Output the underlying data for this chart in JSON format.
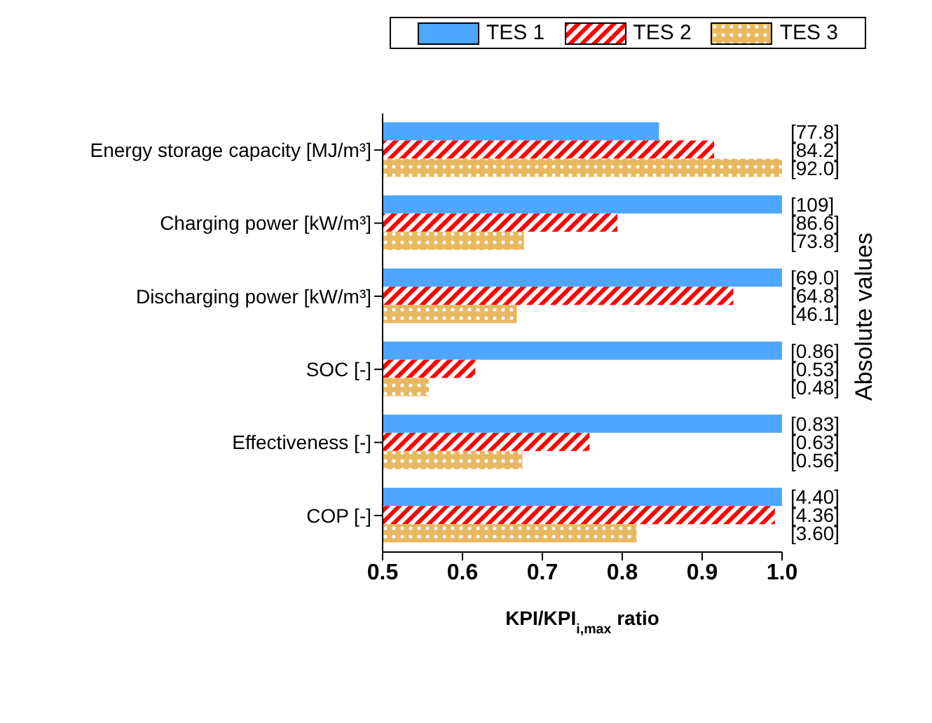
{
  "chart_data": {
    "type": "bar",
    "orientation": "horizontal",
    "categories": [
      "Energy storage capacity  [MJ/m³]",
      "Charging power  [kW/m³]",
      "Discharging power  [kW/m³]",
      "SOC  [-]",
      "Effectiveness  [-]",
      "COP  [-]"
    ],
    "series": [
      {
        "name": "TES 1",
        "color": "#4da6ff",
        "values": [
          0.846,
          1.0,
          1.0,
          1.0,
          1.0,
          1.0
        ]
      },
      {
        "name": "TES 2",
        "color": "#ff0000",
        "values": [
          0.915,
          0.794,
          0.939,
          0.616,
          0.759,
          0.991
        ]
      },
      {
        "name": "TES 3",
        "color": "#e8b860",
        "values": [
          1.0,
          0.677,
          0.668,
          0.558,
          0.675,
          0.818
        ]
      }
    ],
    "annotations": [
      "[77.8]",
      "[84.2]",
      "[92.0]",
      "[109]",
      "[86.6]",
      "[73.8]",
      "[69.0]",
      "[64.8]",
      "[46.1]",
      "[0.86]",
      "[0.53]",
      "[0.48]",
      "[0.83]",
      "[0.63]",
      "[0.56]",
      "[4.40]",
      "[4.36]",
      "[3.60]"
    ],
    "xlim": [
      0.5,
      1.0
    ],
    "xticks": [
      0.5,
      0.6,
      0.7,
      0.8,
      0.9,
      {
        "value": 1.0,
        "label": "1.0"
      }
    ],
    "xlabel": "KPI/KPI$_{i,max}$ ratio",
    "y2label": "Absolute values",
    "legend": "top",
    "grid": false
  }
}
